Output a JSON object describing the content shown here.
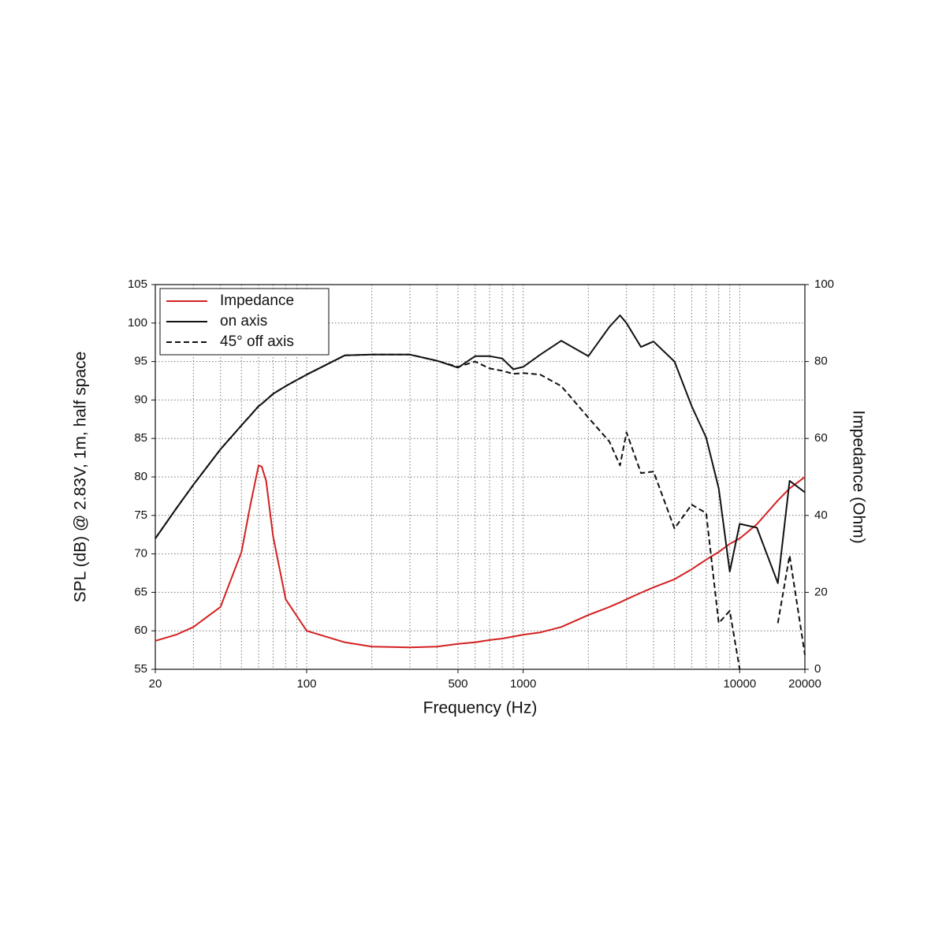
{
  "chart_data": {
    "type": "line",
    "xlabel": "Frequency (Hz)",
    "ylabel": "SPL (dB) @ 2.83V, 1m, half space",
    "y2label": "Impedance (Ohm)",
    "xscale": "log",
    "xlim": [
      20,
      20000
    ],
    "xticks": [
      20,
      100,
      500,
      1000,
      10000,
      20000
    ],
    "xgrid": [
      20,
      30,
      40,
      50,
      60,
      70,
      80,
      90,
      100,
      200,
      300,
      400,
      500,
      600,
      700,
      800,
      900,
      1000,
      2000,
      3000,
      4000,
      5000,
      6000,
      7000,
      8000,
      9000,
      10000,
      20000
    ],
    "ylim": [
      55,
      105
    ],
    "yticks": [
      55,
      60,
      65,
      70,
      75,
      80,
      85,
      90,
      95,
      100,
      105
    ],
    "y2lim": [
      0,
      100
    ],
    "y2ticks": [
      0,
      20,
      40,
      60,
      80,
      100
    ],
    "grid": true,
    "legend": "upper left",
    "x": [
      20,
      25,
      30,
      40,
      50,
      55,
      60,
      62,
      65,
      70,
      80,
      100,
      150,
      200,
      300,
      400,
      500,
      600,
      700,
      800,
      900,
      1000,
      1200,
      1500,
      2000,
      2500,
      2800,
      3000,
      3500,
      4000,
      5000,
      6000,
      7000,
      8000,
      9000,
      10000,
      12000,
      15000,
      17000,
      20000
    ],
    "series": [
      {
        "name": "Impedance",
        "color": "#d42020",
        "dash": false,
        "axis": "y2",
        "values": [
          7.4,
          9,
          11,
          16.2,
          30.5,
          42.8,
          53,
          52.7,
          49,
          34.6,
          18.2,
          10,
          7,
          5.9,
          5.7,
          5.9,
          6.6,
          7,
          7.6,
          8,
          8.5,
          9,
          9.6,
          11,
          14.1,
          16.2,
          17.4,
          18.2,
          19.9,
          21.3,
          23.4,
          26,
          28.5,
          30.5,
          32.6,
          34,
          37.7,
          43.9,
          47,
          50
        ]
      },
      {
        "name": "on axis",
        "color": "#111111",
        "dash": false,
        "values": [
          72,
          75.9,
          79,
          83.6,
          86.7,
          88,
          89.2,
          89.5,
          90,
          90.8,
          91.8,
          93.3,
          95.8,
          95.9,
          95.9,
          95.1,
          94.2,
          95.7,
          95.7,
          95.4,
          94,
          94.3,
          95.9,
          97.7,
          95.7,
          99.5,
          101,
          100,
          96.9,
          97.6,
          95,
          89.2,
          85.1,
          78.5,
          67.7,
          73.9,
          73.4,
          66.2,
          79.5,
          78
        ]
      },
      {
        "name": "45° off axis",
        "color": "#111111",
        "dash": true,
        "values": [
          72,
          75.9,
          79,
          83.6,
          86.7,
          88,
          89.2,
          89.5,
          90,
          90.8,
          91.8,
          93.3,
          95.8,
          95.9,
          95.9,
          95.1,
          94.3,
          95,
          94.1,
          93.8,
          93.4,
          93.5,
          93.3,
          91.8,
          87.7,
          84.6,
          81.5,
          85.8,
          80.5,
          80.7,
          73.3,
          76.4,
          75.3,
          61,
          62.6,
          55,
          null,
          61,
          69.8,
          56.9
        ]
      }
    ]
  }
}
